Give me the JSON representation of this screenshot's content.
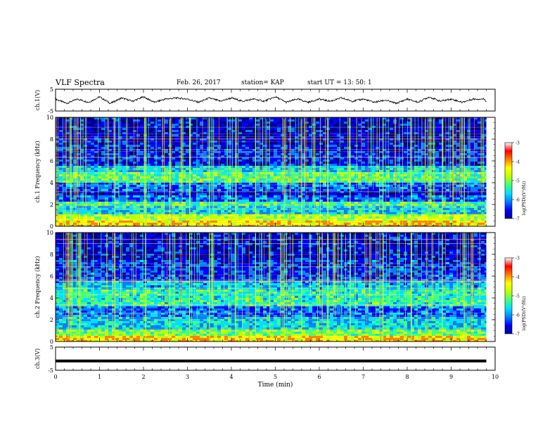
{
  "header": {
    "title": "VLF Spectra",
    "date": "Feb. 26, 2017",
    "station": "station= KAP",
    "start": "start  UT  =   13: 50: 1"
  },
  "chart_data": [
    {
      "type": "line",
      "title": "",
      "ylabel": "ch.1(V)",
      "ylim": [
        -5,
        5
      ],
      "yticks": [
        "5",
        "-5"
      ],
      "xlim": [
        0,
        10
      ],
      "series": [
        {
          "x": [
            0,
            0.25,
            0.5,
            0.75,
            1,
            1.25,
            1.5,
            1.75,
            2,
            2.25,
            2.5,
            2.75,
            3,
            3.25,
            3.5,
            3.75,
            4,
            4.25,
            4.5,
            4.75,
            5,
            5.25,
            5.5,
            5.75,
            6,
            6.25,
            6.5,
            6.75,
            7,
            7.25,
            7.5,
            7.75,
            8,
            8.25,
            8.5,
            8.75,
            9,
            9.25,
            9.5,
            9.75,
            9.8
          ],
          "y": [
            0.5,
            -1.5,
            0.5,
            -1,
            1.5,
            -1.5,
            1,
            -0.5,
            1.5,
            -1,
            0.5,
            1,
            0.5,
            -1,
            1,
            -0.5,
            1,
            -0.5,
            0.5,
            -0.5,
            1.5,
            -1,
            0.5,
            -1,
            0.5,
            -0.5,
            1,
            -0.5,
            0.5,
            -1,
            0,
            -1.5,
            0.5,
            -1,
            1.5,
            -0.5,
            0.5,
            -1,
            0.5,
            0.5,
            -0.5
          ]
        }
      ]
    },
    {
      "type": "heatmap",
      "ylabel": "ch.1  Frequency  (kHz)",
      "ylim": [
        0,
        10
      ],
      "yticks": [
        "0",
        "2",
        "4",
        "6",
        "8",
        "10"
      ],
      "xlim": [
        0,
        10
      ],
      "data_end_min": 9.8,
      "colorbar": {
        "label": "log(PSD)(V²/Hz)",
        "range": [
          -7,
          -3
        ],
        "ticks": [
          "-3",
          "-4",
          "-5",
          "-6",
          "-7"
        ]
      },
      "bands_khz": [
        {
          "from": 0,
          "to": 0.6,
          "level": -4
        },
        {
          "from": 0.6,
          "to": 1.2,
          "level": -4.5
        },
        {
          "from": 1.2,
          "to": 1.9,
          "level": -5.5
        },
        {
          "from": 1.9,
          "to": 2.4,
          "level": -5
        },
        {
          "from": 2.4,
          "to": 3.0,
          "level": -6
        },
        {
          "from": 3.0,
          "to": 3.4,
          "level": -6.5
        },
        {
          "from": 3.4,
          "to": 4.1,
          "level": -6
        },
        {
          "from": 4.1,
          "to": 5.0,
          "level": -5
        },
        {
          "from": 5.0,
          "to": 5.6,
          "level": -5.5
        },
        {
          "from": 5.6,
          "to": 7.5,
          "level": -6.3
        },
        {
          "from": 7.5,
          "to": 10,
          "level": -6.5
        }
      ],
      "dominant_vertical_lines_min": [
        0.35,
        1.35,
        2.05,
        2.6,
        3.05,
        3.5,
        4.1,
        4.55,
        5.2,
        5.6,
        6.2,
        6.7,
        7.45,
        8.1,
        8.8,
        9.3
      ]
    },
    {
      "type": "heatmap",
      "ylabel": "ch.2  Frequency  (kHz)",
      "ylim": [
        0,
        10
      ],
      "yticks": [
        "0",
        "2",
        "4",
        "6",
        "8",
        "10"
      ],
      "xlim": [
        0,
        10
      ],
      "data_end_min": 9.8,
      "colorbar": {
        "label": "log(PSD)(V²/Hz)",
        "range": [
          -7,
          -3
        ],
        "ticks": [
          "-3",
          "-4",
          "-5",
          "-6",
          "-7"
        ]
      },
      "bands_khz": [
        {
          "from": 0,
          "to": 0.6,
          "level": -4
        },
        {
          "from": 0.6,
          "to": 1.2,
          "level": -4.8
        },
        {
          "from": 1.2,
          "to": 2.4,
          "level": -5.5
        },
        {
          "from": 2.4,
          "to": 3.4,
          "level": -6
        },
        {
          "from": 3.4,
          "to": 4.8,
          "level": -5.2
        },
        {
          "from": 4.8,
          "to": 5.6,
          "level": -5.6
        },
        {
          "from": 5.6,
          "to": 7.5,
          "level": -6.2
        },
        {
          "from": 7.5,
          "to": 10,
          "level": -6.5
        }
      ],
      "dominant_vertical_lines_min": [
        0.35,
        1.35,
        2.05,
        2.6,
        3.05,
        3.5,
        4.1,
        4.55,
        5.2,
        5.6,
        6.2,
        6.7,
        7.45,
        8.1,
        8.8,
        9.3
      ]
    },
    {
      "type": "line",
      "ylabel": "ch.3(V)",
      "ylim": [
        -5,
        5
      ],
      "yticks": [
        "5",
        "-5"
      ],
      "xlim": [
        0,
        10
      ],
      "xlabel": "Time  (min)",
      "xticks": [
        "0",
        "1",
        "2",
        "3",
        "4",
        "5",
        "6",
        "7",
        "8",
        "9",
        "10"
      ],
      "series": [
        {
          "x": [
            0,
            9.8
          ],
          "y": [
            -1,
            -1
          ]
        }
      ]
    }
  ],
  "colors": {
    "colormap": [
      "#00008b",
      "#0000ff",
      "#0080ff",
      "#00e0ff",
      "#40ff80",
      "#c0ff00",
      "#ffff00",
      "#ff8000",
      "#ff0000",
      "#ffffff"
    ],
    "line": "#000000"
  }
}
